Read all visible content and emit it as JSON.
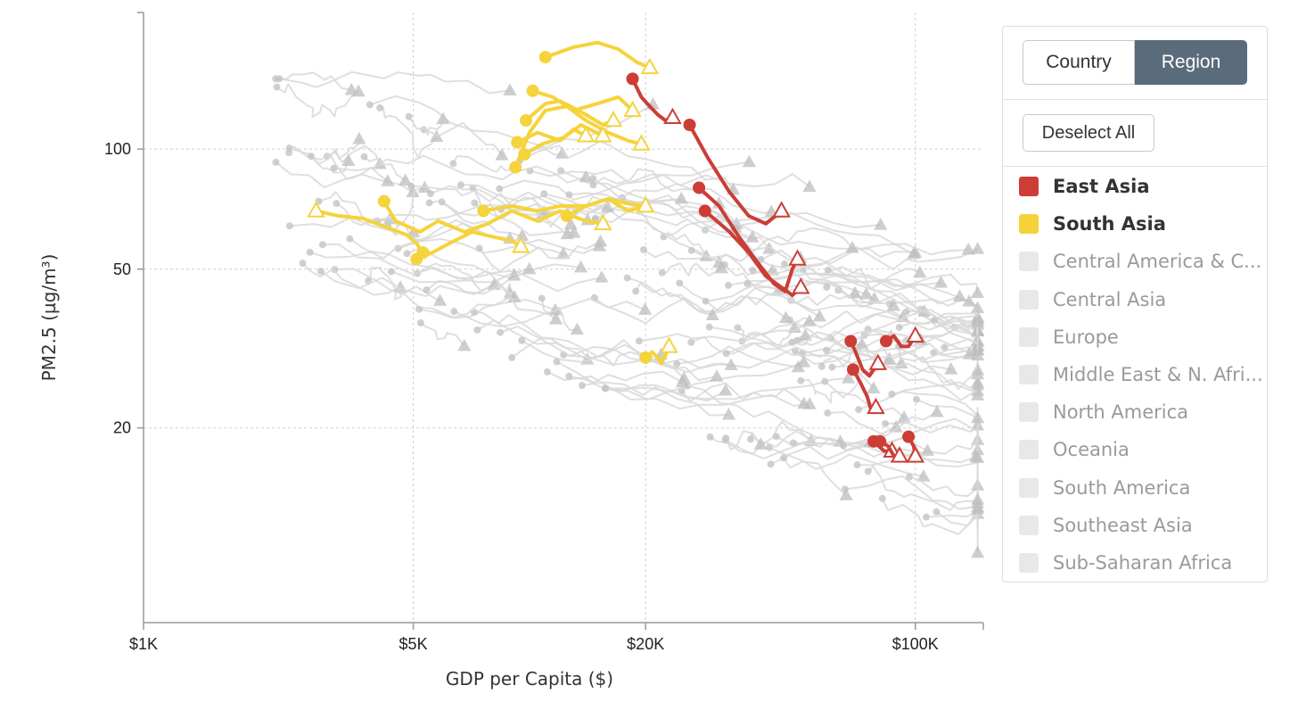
{
  "chart_data": {
    "type": "scatter",
    "xlabel": "GDP per Capita ($)",
    "ylabel": "PM2.5 (µg/m³)",
    "x_scale": "log",
    "y_scale": "log",
    "xlim": [
      1000,
      150000
    ],
    "ylim": [
      6.5,
      220
    ],
    "x_ticks": [
      {
        "value": 1000,
        "label": "$1K"
      },
      {
        "value": 5000,
        "label": "$5K"
      },
      {
        "value": 20000,
        "label": "$20K"
      },
      {
        "value": 100000,
        "label": "$100K"
      }
    ],
    "y_ticks": [
      {
        "value": 20,
        "label": "20"
      },
      {
        "value": 50,
        "label": "50"
      },
      {
        "value": 100,
        "label": "100"
      }
    ],
    "grid": true,
    "marker_legend": "circle = start of trajectory, triangle = end of trajectory",
    "highlight_colors": {
      "East Asia": "#cc3d36",
      "South Asia": "#f5d33b",
      "other": "#c8c8c8"
    },
    "series": [
      {
        "name": "East Asia",
        "trajectories": [
          [
            [
              18500,
              150
            ],
            [
              19500,
              135
            ],
            [
              20500,
              128
            ],
            [
              21500,
              122
            ],
            [
              22500,
              118
            ],
            [
              23500,
              120
            ]
          ],
          [
            [
              26000,
              115
            ],
            [
              29000,
              95
            ],
            [
              33000,
              78
            ],
            [
              37000,
              68
            ],
            [
              41000,
              65
            ],
            [
              45000,
              70
            ]
          ],
          [
            [
              27500,
              80
            ],
            [
              31000,
              72
            ],
            [
              35000,
              60
            ],
            [
              39000,
              52
            ],
            [
              43000,
              46
            ],
            [
              46000,
              44
            ],
            [
              48000,
              50
            ],
            [
              49500,
              53
            ]
          ],
          [
            [
              28500,
              70
            ],
            [
              33000,
              62
            ],
            [
              37000,
              55
            ],
            [
              41000,
              48
            ],
            [
              45000,
              45
            ],
            [
              48000,
              43
            ],
            [
              50500,
              45
            ]
          ],
          [
            [
              68000,
              33
            ],
            [
              70000,
              31
            ],
            [
              73000,
              28
            ],
            [
              76000,
              27
            ],
            [
              78000,
              28
            ],
            [
              80000,
              29
            ]
          ],
          [
            [
              69000,
              28
            ],
            [
              72000,
              26
            ],
            [
              75000,
              24
            ],
            [
              77000,
              22
            ],
            [
              79000,
              22.5
            ]
          ],
          [
            [
              84000,
              33
            ],
            [
              88000,
              34
            ],
            [
              92000,
              32
            ],
            [
              96000,
              32
            ],
            [
              100000,
              34
            ]
          ],
          [
            [
              78000,
              18.5
            ],
            [
              83000,
              17.5
            ],
            [
              87000,
              17.5
            ]
          ],
          [
            [
              81000,
              18.5
            ],
            [
              85000,
              18
            ],
            [
              88000,
              17
            ],
            [
              91000,
              17
            ]
          ],
          [
            [
              96000,
              19
            ],
            [
              99000,
              18
            ],
            [
              100000,
              17
            ]
          ]
        ]
      },
      {
        "name": "South Asia",
        "trajectories": [
          [
            [
              11000,
              170
            ],
            [
              13000,
              180
            ],
            [
              15000,
              185
            ],
            [
              17000,
              178
            ],
            [
              19000,
              165
            ],
            [
              20500,
              160
            ]
          ],
          [
            [
              9200,
              90
            ],
            [
              10000,
              110
            ],
            [
              11000,
              125
            ],
            [
              12500,
              128
            ],
            [
              14000,
              118
            ],
            [
              16000,
              110
            ],
            [
              18000,
              105
            ],
            [
              19500,
              103
            ]
          ],
          [
            [
              9800,
              118
            ],
            [
              11000,
              130
            ],
            [
              12000,
              132
            ],
            [
              14000,
              122
            ],
            [
              15500,
              115
            ],
            [
              16500,
              118
            ]
          ],
          [
            [
              10200,
              140
            ],
            [
              11500,
              135
            ],
            [
              13000,
              125
            ],
            [
              15000,
              130
            ],
            [
              17000,
              135
            ],
            [
              18500,
              125
            ]
          ],
          [
            [
              9300,
              104
            ],
            [
              10500,
              110
            ],
            [
              12000,
              105
            ],
            [
              13000,
              112
            ],
            [
              14000,
              108
            ]
          ],
          [
            [
              9700,
              97
            ],
            [
              10800,
              103
            ],
            [
              12300,
              107
            ],
            [
              13600,
              115
            ],
            [
              15500,
              108
            ]
          ],
          [
            [
              4200,
              74
            ],
            [
              4500,
              66
            ],
            [
              5200,
              62
            ],
            [
              5800,
              66
            ],
            [
              6800,
              62
            ],
            [
              7800,
              65
            ],
            [
              9000,
              70
            ],
            [
              10500,
              66
            ],
            [
              12000,
              70
            ],
            [
              14000,
              66
            ],
            [
              15500,
              65
            ]
          ],
          [
            [
              7600,
              70
            ],
            [
              9000,
              72
            ],
            [
              10500,
              70
            ],
            [
              12000,
              72
            ],
            [
              14000,
              72
            ],
            [
              16000,
              75
            ],
            [
              18000,
              73
            ],
            [
              20000,
              72
            ]
          ],
          [
            [
              12500,
              68
            ],
            [
              14000,
              72
            ],
            [
              16000,
              75
            ],
            [
              18000,
              70
            ],
            [
              20000,
              72
            ]
          ],
          [
            [
              5300,
              55
            ],
            [
              5100,
              58
            ],
            [
              4800,
              61
            ],
            [
              4200,
              64
            ],
            [
              3700,
              67
            ],
            [
              3200,
              68
            ],
            [
              2800,
              70
            ]
          ],
          [
            [
              5100,
              53
            ],
            [
              5600,
              55
            ],
            [
              6200,
              58
            ],
            [
              7100,
              62
            ],
            [
              8200,
              60
            ],
            [
              9000,
              59
            ],
            [
              9500,
              57
            ]
          ],
          [
            [
              20000,
              30
            ],
            [
              20800,
              31
            ],
            [
              21500,
              30
            ],
            [
              22000,
              29
            ],
            [
              22700,
              31
            ],
            [
              23000,
              32
            ]
          ]
        ]
      }
    ],
    "background_trajectories_count": "many (all other regions, greyed out)"
  },
  "panel": {
    "tabs": [
      {
        "label": "Country",
        "active": false
      },
      {
        "label": "Region",
        "active": true
      }
    ],
    "deselect_label": "Deselect All",
    "legend": [
      {
        "label": "East Asia",
        "active": true,
        "color": "#cc3d36"
      },
      {
        "label": "South Asia",
        "active": true,
        "color": "#f5d33b"
      },
      {
        "label": "Central America & C...",
        "active": false,
        "color": "#e8e8e8"
      },
      {
        "label": "Central Asia",
        "active": false,
        "color": "#e8e8e8"
      },
      {
        "label": "Europe",
        "active": false,
        "color": "#e8e8e8"
      },
      {
        "label": "Middle East & N. Afri...",
        "active": false,
        "color": "#e8e8e8"
      },
      {
        "label": "North America",
        "active": false,
        "color": "#e8e8e8"
      },
      {
        "label": "Oceania",
        "active": false,
        "color": "#e8e8e8"
      },
      {
        "label": "South America",
        "active": false,
        "color": "#e8e8e8"
      },
      {
        "label": "Southeast Asia",
        "active": false,
        "color": "#e8e8e8"
      },
      {
        "label": "Sub-Saharan Africa",
        "active": false,
        "color": "#e8e8e8"
      }
    ]
  }
}
